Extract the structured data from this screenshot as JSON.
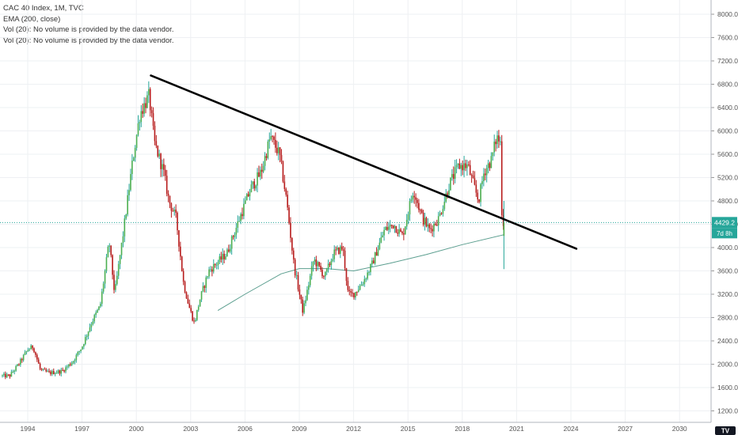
{
  "legend": {
    "title": "CAC 40 Index, 1M, TVC",
    "ema": "EMA (200, close)",
    "vol1": "Vol (20): No volume is provided by the data vendor.",
    "vol2": "Vol (20): No volume is provided by the data vendor."
  },
  "price_badge": {
    "price": "4429.2",
    "countdown": "7d 8h"
  },
  "colors": {
    "up": "#26a69a",
    "up_body": "#4caf50",
    "down": "#b71c1c",
    "ema": "#5b9e8f",
    "trendline": "#000000",
    "grid": "#eef0f3",
    "axis_text": "#555555",
    "badge": "#26a69a"
  },
  "chart_data": {
    "type": "candlestick",
    "title": "CAC 40 Index, 1M, TVC",
    "xlabel": "",
    "ylabel": "",
    "x_ticks": [
      "1994",
      "1997",
      "2000",
      "2003",
      "2006",
      "2009",
      "2012",
      "2015",
      "2018",
      "2021",
      "2024",
      "2027",
      "2030"
    ],
    "y_ticks": [
      "1200.0",
      "1600.0",
      "2000.0",
      "2400.0",
      "2800.0",
      "3200.0",
      "3600.0",
      "4000.0",
      "4400.0",
      "4800.0",
      "5200.0",
      "5600.0",
      "6000.0",
      "6400.0",
      "6800.0",
      "7200.0",
      "7600.0",
      "8000.0"
    ],
    "xlim": [
      1992.5,
      2032.0
    ],
    "ylim": [
      1150,
      8120
    ],
    "last_price": 4429.2,
    "price_anchors": [
      [
        1993.0,
        1800
      ],
      [
        1993.5,
        2000
      ],
      [
        1994.0,
        2250
      ],
      [
        1994.3,
        2300
      ],
      [
        1994.7,
        1900
      ],
      [
        1995.2,
        1850
      ],
      [
        1995.9,
        1880
      ],
      [
        1996.5,
        2050
      ],
      [
        1997.0,
        2300
      ],
      [
        1997.5,
        2700
      ],
      [
        1998.0,
        3000
      ],
      [
        1998.5,
        4100
      ],
      [
        1998.8,
        3200
      ],
      [
        1999.3,
        4300
      ],
      [
        1999.8,
        5500
      ],
      [
        2000.2,
        6300
      ],
      [
        2000.7,
        6600
      ],
      [
        2001.0,
        5800
      ],
      [
        2001.5,
        5300
      ],
      [
        2001.8,
        4800
      ],
      [
        2002.2,
        4500
      ],
      [
        2002.6,
        3400
      ],
      [
        2002.9,
        3000
      ],
      [
        2003.2,
        2700
      ],
      [
        2003.5,
        3100
      ],
      [
        2004.0,
        3600
      ],
      [
        2005.0,
        3900
      ],
      [
        2005.7,
        4500
      ],
      [
        2006.3,
        5000
      ],
      [
        2006.9,
        5300
      ],
      [
        2007.4,
        5900
      ],
      [
        2007.9,
        5600
      ],
      [
        2008.3,
        4800
      ],
      [
        2008.7,
        3700
      ],
      [
        2009.2,
        2900
      ],
      [
        2009.8,
        3800
      ],
      [
        2010.4,
        3500
      ],
      [
        2010.9,
        3900
      ],
      [
        2011.4,
        4000
      ],
      [
        2011.7,
        3200
      ],
      [
        2012.0,
        3200
      ],
      [
        2012.5,
        3400
      ],
      [
        2013.0,
        3700
      ],
      [
        2013.7,
        4300
      ],
      [
        2014.2,
        4400
      ],
      [
        2014.7,
        4200
      ],
      [
        2015.3,
        5000
      ],
      [
        2015.8,
        4500
      ],
      [
        2016.2,
        4300
      ],
      [
        2016.7,
        4500
      ],
      [
        2017.3,
        5100
      ],
      [
        2017.8,
        5400
      ],
      [
        2018.3,
        5400
      ],
      [
        2018.9,
        4800
      ],
      [
        2019.2,
        5300
      ],
      [
        2019.6,
        5500
      ],
      [
        2019.9,
        5900
      ],
      [
        2020.1,
        5800
      ],
      [
        2020.2,
        4400
      ],
      [
        2020.3,
        4429.2
      ]
    ],
    "ema_200": [
      [
        2004.5,
        2920
      ],
      [
        2006.0,
        3200
      ],
      [
        2008.0,
        3550
      ],
      [
        2009.0,
        3640
      ],
      [
        2010.5,
        3640
      ],
      [
        2012.0,
        3600
      ],
      [
        2014.0,
        3730
      ],
      [
        2016.0,
        3880
      ],
      [
        2018.0,
        4050
      ],
      [
        2020.3,
        4220
      ]
    ],
    "trendline": {
      "start": [
        2000.8,
        6950
      ],
      "end": [
        2024.3,
        3980
      ]
    }
  }
}
